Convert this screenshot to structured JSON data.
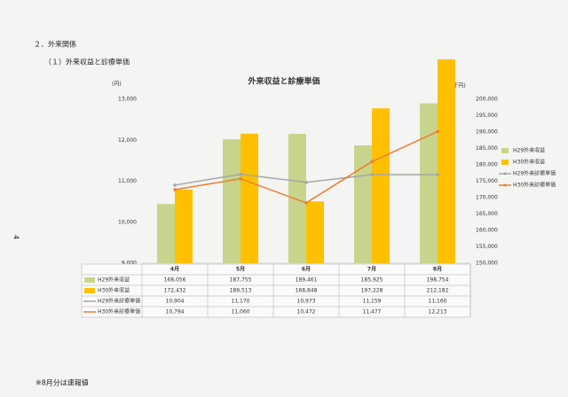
{
  "heading": "２．外来関係",
  "subheading": "（１）外来収益と診療単価",
  "page_number": "4",
  "footnote": "※8月分は速報値",
  "chart_data": {
    "type": "bar",
    "title": "外来収益と診療単価",
    "y_unit": "(円)",
    "y2_unit": "(千円)",
    "categories": [
      "4月",
      "5月",
      "6月",
      "7月",
      "8月"
    ],
    "series": [
      {
        "name": "H29外来収益",
        "type": "bar",
        "axis": "y2",
        "color": "#c7d58c",
        "values": [
          168056,
          187755,
          189461,
          185925,
          198754
        ],
        "value_labels": [
          "168,056",
          "187,755",
          "189,461",
          "185,925",
          "198,754"
        ]
      },
      {
        "name": "H30外来収益",
        "type": "bar",
        "axis": "y2",
        "color": "#ffc000",
        "values": [
          172432,
          189513,
          168848,
          197228,
          212182
        ],
        "value_labels": [
          "172,432",
          "189,513",
          "168,848",
          "197,228",
          "212,182"
        ]
      },
      {
        "name": "H29外来診療単価",
        "type": "line",
        "color": "#a6a6a6",
        "values": [
          10904,
          11170,
          10973,
          11159,
          11160
        ],
        "value_labels": [
          "10,904",
          "11,170",
          "10,973",
          "11,159",
          "11,160"
        ]
      },
      {
        "name": "H30外来診療単価",
        "type": "line",
        "color": "#ed7d31",
        "values": [
          10794,
          11060,
          10472,
          11477,
          12213
        ],
        "value_labels": [
          "10,794",
          "11,060",
          "10,472",
          "11,477",
          "12,213"
        ]
      }
    ],
    "ylim": [
      9000,
      13000
    ],
    "yticks": [
      {
        "value": 9000,
        "label": "9,000"
      },
      {
        "value": 10000,
        "label": "10,000"
      },
      {
        "value": 11000,
        "label": "11,000"
      },
      {
        "value": 12000,
        "label": "12,000"
      },
      {
        "value": 13000,
        "label": "13,000"
      }
    ],
    "y2lim": [
      150000,
      200000
    ],
    "y2ticks": [
      {
        "value": 150000,
        "label": "150,000"
      },
      {
        "value": 155000,
        "label": "155,000"
      },
      {
        "value": 160000,
        "label": "160,000"
      },
      {
        "value": 165000,
        "label": "165,000"
      },
      {
        "value": 170000,
        "label": "170,000"
      },
      {
        "value": 175000,
        "label": "175,000"
      },
      {
        "value": 180000,
        "label": "180,000"
      },
      {
        "value": 185000,
        "label": "185,000"
      },
      {
        "value": 190000,
        "label": "190,000"
      },
      {
        "value": 195000,
        "label": "195,000"
      },
      {
        "value": 200000,
        "label": "200,000"
      }
    ],
    "grid": false
  }
}
